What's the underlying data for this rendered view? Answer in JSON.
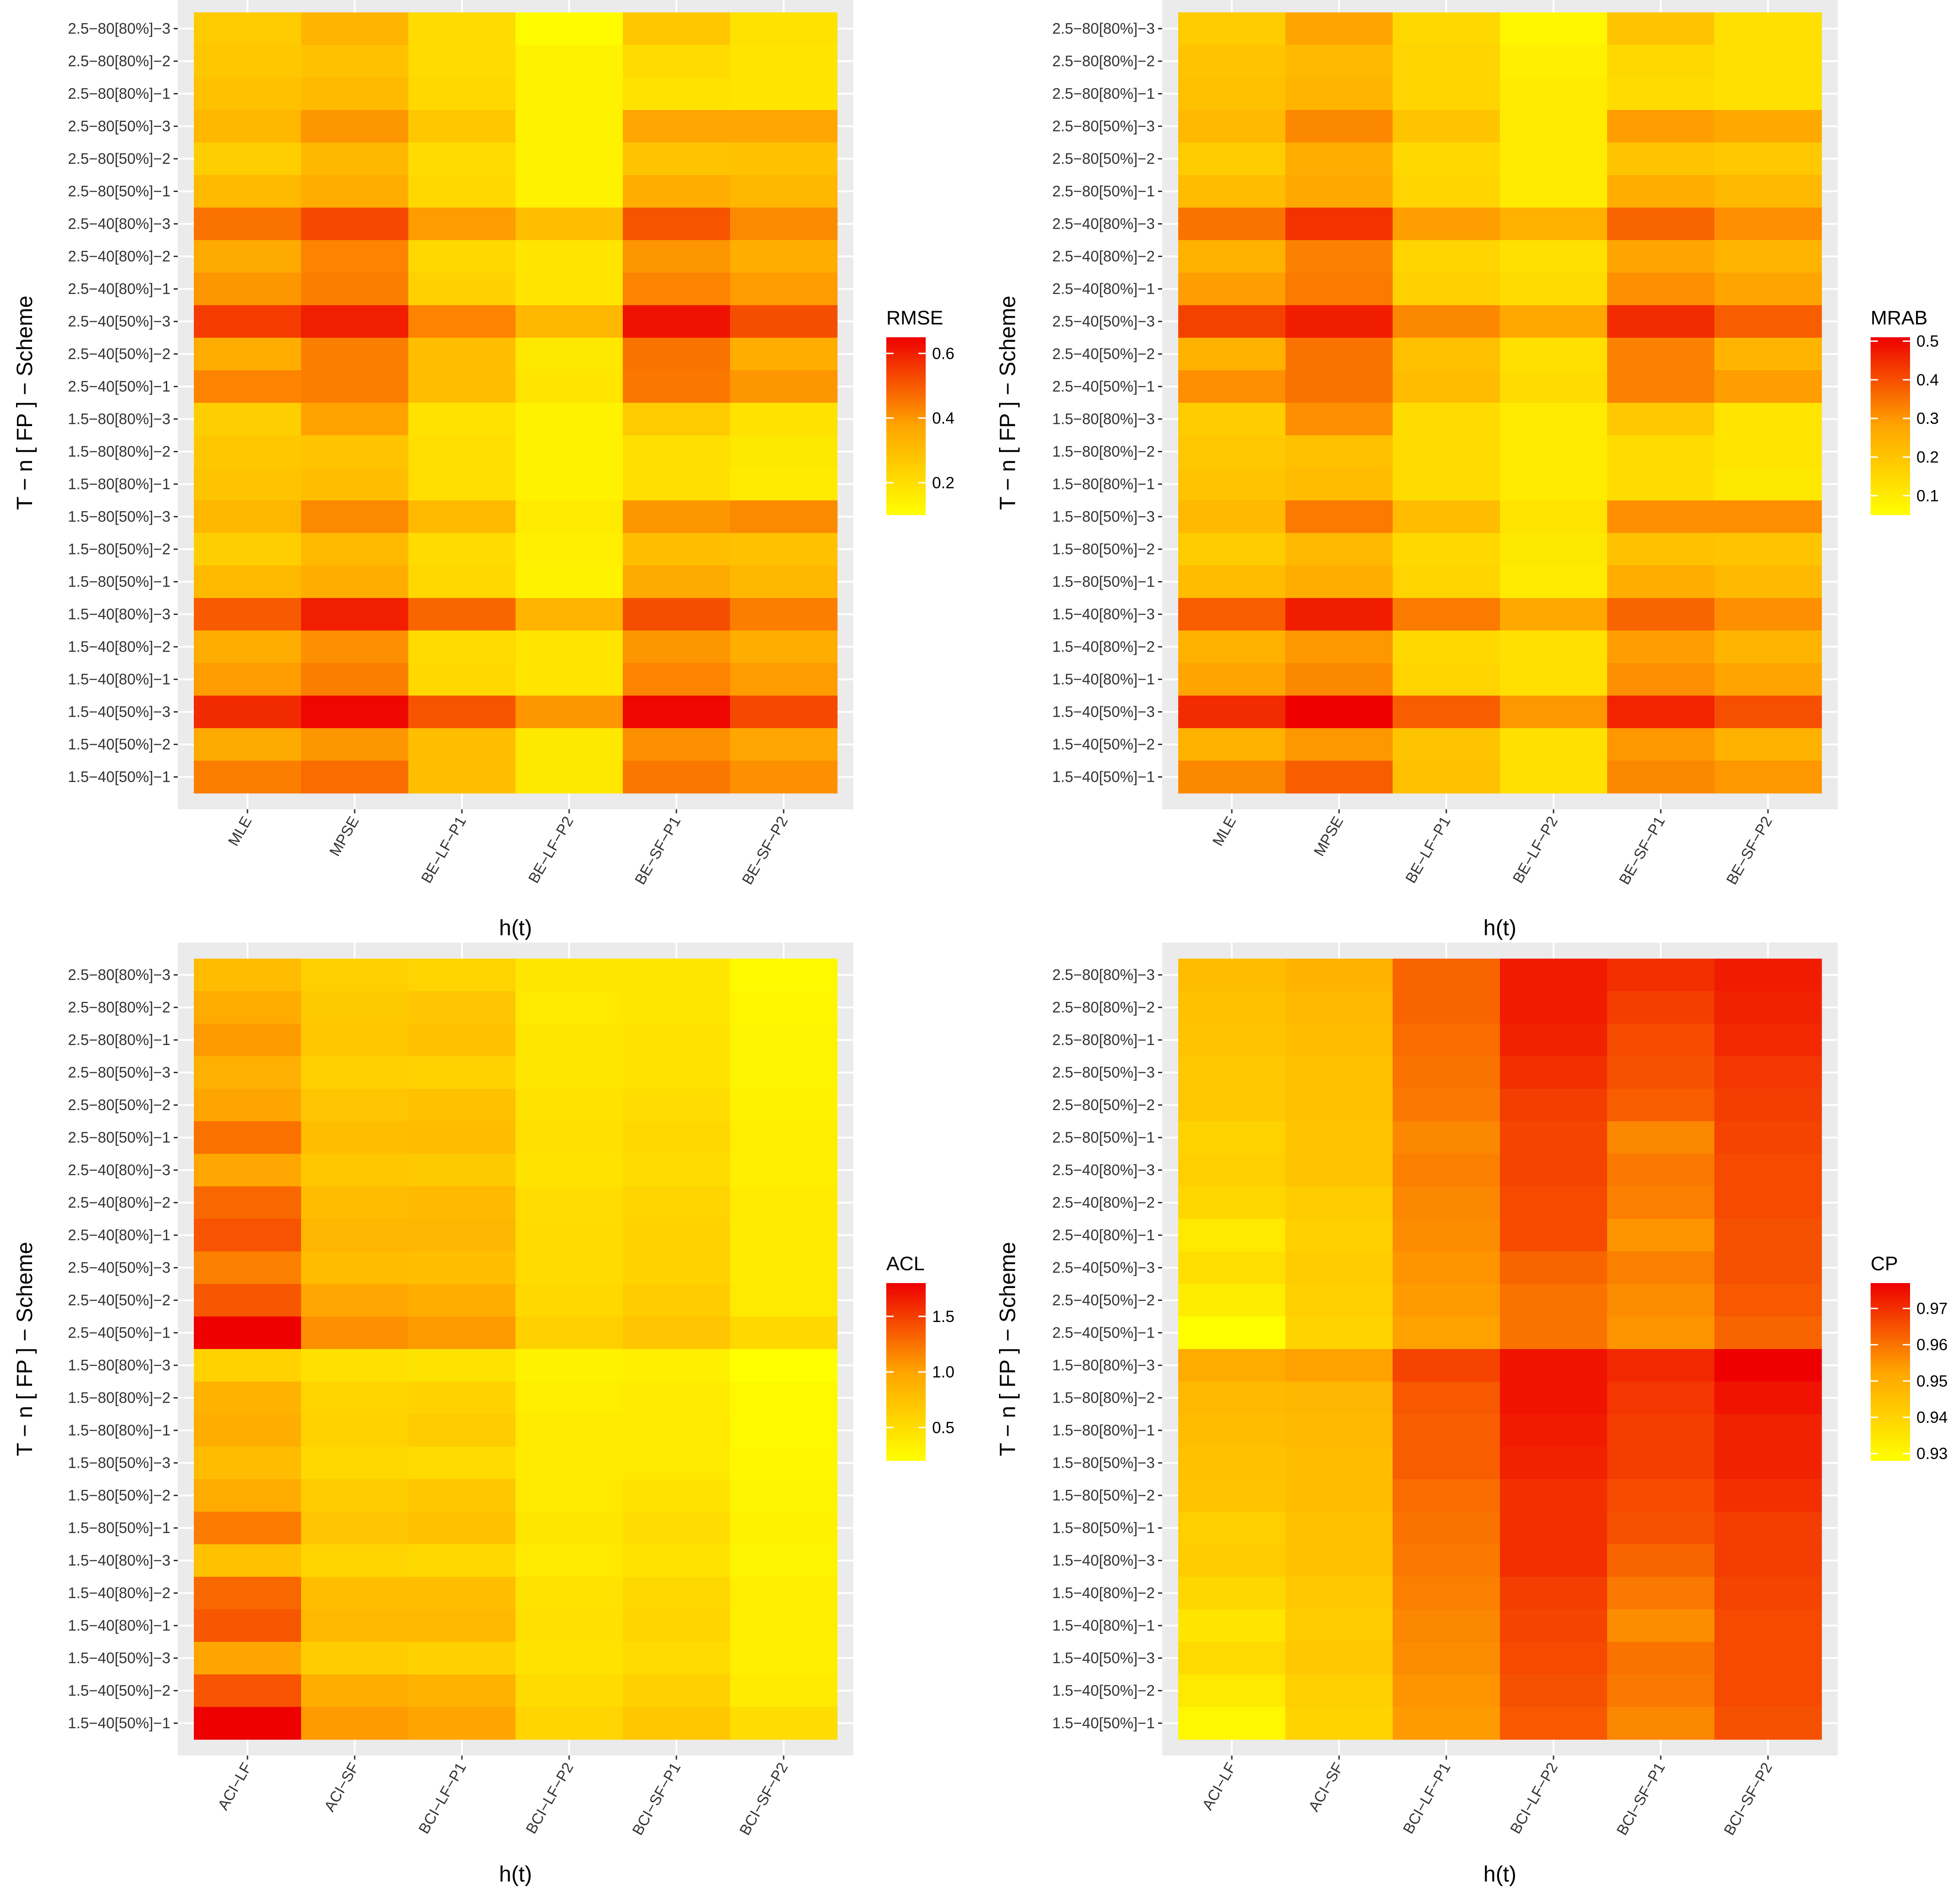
{
  "colors": {
    "low": "#FFFF00",
    "mid": "#FFA500",
    "high": "#EE0000",
    "panel_bg": "#EBEBEB"
  },
  "shared": {
    "rows": [
      "2.5−80[80%]−3",
      "2.5−80[80%]−2",
      "2.5−80[80%]−1",
      "2.5−80[50%]−3",
      "2.5−80[50%]−2",
      "2.5−80[50%]−1",
      "2.5−40[80%]−3",
      "2.5−40[80%]−2",
      "2.5−40[80%]−1",
      "2.5−40[50%]−3",
      "2.5−40[50%]−2",
      "2.5−40[50%]−1",
      "1.5−80[80%]−3",
      "1.5−80[80%]−2",
      "1.5−80[80%]−1",
      "1.5−80[50%]−3",
      "1.5−80[50%]−2",
      "1.5−80[50%]−1",
      "1.5−40[80%]−3",
      "1.5−40[80%]−2",
      "1.5−40[80%]−1",
      "1.5−40[50%]−3",
      "1.5−40[50%]−2",
      "1.5−40[50%]−1"
    ],
    "xlabel": "h(t)",
    "ylabel": "T − n [ FP ] − Scheme"
  },
  "chart_data": [
    {
      "type": "heatmap",
      "legend_title": "RMSE",
      "legend_ticks": [
        0.2,
        0.4,
        0.6
      ],
      "value_range": [
        0.1,
        0.65
      ],
      "columns": [
        "MLE",
        "MPSE",
        "BE−LF−P1",
        "BE−LF−P2",
        "BE−SF−P1",
        "BE−SF−P2"
      ],
      "values": [
        [
          0.26,
          0.33,
          0.21,
          0.11,
          0.27,
          0.19
        ],
        [
          0.27,
          0.29,
          0.21,
          0.14,
          0.21,
          0.18
        ],
        [
          0.29,
          0.31,
          0.22,
          0.14,
          0.19,
          0.18
        ],
        [
          0.32,
          0.4,
          0.27,
          0.14,
          0.37,
          0.37
        ],
        [
          0.25,
          0.32,
          0.21,
          0.14,
          0.28,
          0.29
        ],
        [
          0.31,
          0.35,
          0.22,
          0.14,
          0.35,
          0.32
        ],
        [
          0.46,
          0.53,
          0.39,
          0.3,
          0.51,
          0.42
        ],
        [
          0.36,
          0.43,
          0.22,
          0.18,
          0.4,
          0.35
        ],
        [
          0.4,
          0.44,
          0.24,
          0.18,
          0.43,
          0.39
        ],
        [
          0.55,
          0.6,
          0.43,
          0.32,
          0.62,
          0.52
        ],
        [
          0.35,
          0.44,
          0.3,
          0.17,
          0.46,
          0.35
        ],
        [
          0.43,
          0.44,
          0.3,
          0.18,
          0.45,
          0.4
        ],
        [
          0.25,
          0.38,
          0.19,
          0.14,
          0.26,
          0.19
        ],
        [
          0.27,
          0.28,
          0.2,
          0.14,
          0.2,
          0.17
        ],
        [
          0.28,
          0.3,
          0.2,
          0.14,
          0.2,
          0.16
        ],
        [
          0.32,
          0.42,
          0.31,
          0.16,
          0.4,
          0.42
        ],
        [
          0.25,
          0.31,
          0.21,
          0.15,
          0.3,
          0.29
        ],
        [
          0.31,
          0.35,
          0.22,
          0.14,
          0.36,
          0.32
        ],
        [
          0.5,
          0.6,
          0.48,
          0.33,
          0.52,
          0.44
        ],
        [
          0.35,
          0.41,
          0.21,
          0.18,
          0.4,
          0.35
        ],
        [
          0.39,
          0.44,
          0.22,
          0.18,
          0.43,
          0.39
        ],
        [
          0.58,
          0.64,
          0.51,
          0.4,
          0.64,
          0.53
        ],
        [
          0.36,
          0.4,
          0.3,
          0.17,
          0.41,
          0.37
        ],
        [
          0.44,
          0.47,
          0.3,
          0.17,
          0.45,
          0.41
        ]
      ]
    },
    {
      "type": "heatmap",
      "legend_title": "MRAB",
      "legend_ticks": [
        0.1,
        0.2,
        0.3,
        0.4,
        0.5
      ],
      "value_range": [
        0.05,
        0.51
      ],
      "columns": [
        "MLE",
        "MPSE",
        "BE−LF−P1",
        "BE−LF−P2",
        "BE−SF−P1",
        "BE−SF−P2"
      ],
      "values": [
        [
          0.18,
          0.28,
          0.15,
          0.07,
          0.2,
          0.13
        ],
        [
          0.2,
          0.23,
          0.16,
          0.09,
          0.15,
          0.13
        ],
        [
          0.21,
          0.24,
          0.16,
          0.1,
          0.14,
          0.13
        ],
        [
          0.23,
          0.32,
          0.2,
          0.1,
          0.29,
          0.27
        ],
        [
          0.18,
          0.26,
          0.15,
          0.1,
          0.2,
          0.19
        ],
        [
          0.22,
          0.27,
          0.16,
          0.1,
          0.26,
          0.23
        ],
        [
          0.35,
          0.44,
          0.29,
          0.25,
          0.37,
          0.31
        ],
        [
          0.25,
          0.33,
          0.16,
          0.13,
          0.28,
          0.24
        ],
        [
          0.29,
          0.34,
          0.17,
          0.14,
          0.31,
          0.28
        ],
        [
          0.42,
          0.47,
          0.32,
          0.27,
          0.45,
          0.38
        ],
        [
          0.25,
          0.35,
          0.21,
          0.13,
          0.33,
          0.24
        ],
        [
          0.31,
          0.35,
          0.22,
          0.14,
          0.33,
          0.29
        ],
        [
          0.18,
          0.31,
          0.14,
          0.1,
          0.19,
          0.12
        ],
        [
          0.19,
          0.21,
          0.14,
          0.1,
          0.14,
          0.12
        ],
        [
          0.2,
          0.22,
          0.14,
          0.1,
          0.14,
          0.11
        ],
        [
          0.23,
          0.34,
          0.22,
          0.12,
          0.31,
          0.31
        ],
        [
          0.18,
          0.23,
          0.15,
          0.11,
          0.21,
          0.2
        ],
        [
          0.22,
          0.26,
          0.16,
          0.1,
          0.26,
          0.23
        ],
        [
          0.38,
          0.47,
          0.34,
          0.27,
          0.37,
          0.31
        ],
        [
          0.25,
          0.3,
          0.15,
          0.13,
          0.29,
          0.24
        ],
        [
          0.28,
          0.32,
          0.16,
          0.13,
          0.31,
          0.28
        ],
        [
          0.45,
          0.51,
          0.38,
          0.3,
          0.46,
          0.4
        ],
        [
          0.25,
          0.3,
          0.2,
          0.13,
          0.3,
          0.25
        ],
        [
          0.32,
          0.38,
          0.21,
          0.13,
          0.32,
          0.3
        ]
      ]
    },
    {
      "type": "heatmap",
      "legend_title": "ACL",
      "legend_ticks": [
        0.5,
        1.0,
        1.5
      ],
      "value_range": [
        0.2,
        1.8
      ],
      "columns": [
        "ACI−LF",
        "ACI−SF",
        "BCI−LF−P1",
        "BCI−LF−P2",
        "BCI−SF−P1",
        "BCI−SF−P2"
      ],
      "values": [
        [
          0.8,
          0.62,
          0.58,
          0.42,
          0.42,
          0.25
        ],
        [
          0.95,
          0.68,
          0.72,
          0.4,
          0.42,
          0.28
        ],
        [
          1.05,
          0.7,
          0.75,
          0.42,
          0.45,
          0.3
        ],
        [
          0.9,
          0.62,
          0.6,
          0.42,
          0.45,
          0.3
        ],
        [
          1.0,
          0.72,
          0.75,
          0.45,
          0.5,
          0.32
        ],
        [
          1.25,
          0.78,
          0.8,
          0.48,
          0.55,
          0.35
        ],
        [
          0.98,
          0.7,
          0.68,
          0.45,
          0.52,
          0.35
        ],
        [
          1.3,
          0.8,
          0.82,
          0.5,
          0.58,
          0.38
        ],
        [
          1.4,
          0.85,
          0.85,
          0.52,
          0.6,
          0.38
        ],
        [
          1.18,
          0.8,
          0.78,
          0.52,
          0.6,
          0.38
        ],
        [
          1.38,
          0.98,
          0.92,
          0.55,
          0.65,
          0.4
        ],
        [
          1.8,
          1.1,
          1.05,
          0.62,
          0.72,
          0.55
        ],
        [
          0.6,
          0.48,
          0.45,
          0.32,
          0.33,
          0.2
        ],
        [
          0.88,
          0.58,
          0.6,
          0.35,
          0.38,
          0.25
        ],
        [
          0.92,
          0.6,
          0.65,
          0.38,
          0.4,
          0.25
        ],
        [
          0.8,
          0.55,
          0.52,
          0.38,
          0.4,
          0.27
        ],
        [
          0.95,
          0.65,
          0.7,
          0.4,
          0.45,
          0.3
        ],
        [
          1.2,
          0.72,
          0.75,
          0.42,
          0.5,
          0.32
        ],
        [
          0.75,
          0.58,
          0.55,
          0.4,
          0.45,
          0.3
        ],
        [
          1.3,
          0.78,
          0.78,
          0.45,
          0.55,
          0.35
        ],
        [
          1.38,
          0.82,
          0.82,
          0.48,
          0.58,
          0.35
        ],
        [
          1.0,
          0.65,
          0.62,
          0.45,
          0.52,
          0.35
        ],
        [
          1.4,
          0.92,
          0.88,
          0.52,
          0.62,
          0.38
        ],
        [
          1.8,
          1.05,
          1.0,
          0.58,
          0.7,
          0.5
        ]
      ]
    },
    {
      "type": "heatmap",
      "legend_title": "CP",
      "legend_ticks": [
        0.93,
        0.94,
        0.95,
        0.96,
        0.97
      ],
      "value_range": [
        0.928,
        0.977
      ],
      "columns": [
        "ACI−LF",
        "ACI−SF",
        "BCI−LF−P1",
        "BCI−LF−P2",
        "BCI−SF−P1",
        "BCI−SF−P2"
      ],
      "values": [
        [
          0.946,
          0.949,
          0.962,
          0.973,
          0.97,
          0.973
        ],
        [
          0.945,
          0.947,
          0.962,
          0.973,
          0.968,
          0.972
        ],
        [
          0.944,
          0.946,
          0.961,
          0.972,
          0.966,
          0.971
        ],
        [
          0.943,
          0.945,
          0.96,
          0.97,
          0.965,
          0.969
        ],
        [
          0.943,
          0.945,
          0.959,
          0.968,
          0.963,
          0.968
        ],
        [
          0.94,
          0.944,
          0.957,
          0.967,
          0.957,
          0.967
        ],
        [
          0.941,
          0.944,
          0.958,
          0.967,
          0.959,
          0.966
        ],
        [
          0.939,
          0.942,
          0.957,
          0.966,
          0.958,
          0.966
        ],
        [
          0.934,
          0.941,
          0.956,
          0.966,
          0.955,
          0.965
        ],
        [
          0.937,
          0.942,
          0.955,
          0.962,
          0.958,
          0.965
        ],
        [
          0.933,
          0.941,
          0.954,
          0.96,
          0.956,
          0.964
        ],
        [
          0.928,
          0.94,
          0.953,
          0.96,
          0.955,
          0.962
        ],
        [
          0.951,
          0.953,
          0.967,
          0.974,
          0.971,
          0.977
        ],
        [
          0.947,
          0.948,
          0.964,
          0.974,
          0.969,
          0.974
        ],
        [
          0.946,
          0.947,
          0.963,
          0.973,
          0.968,
          0.972
        ],
        [
          0.945,
          0.946,
          0.963,
          0.972,
          0.968,
          0.972
        ],
        [
          0.944,
          0.946,
          0.961,
          0.97,
          0.966,
          0.97
        ],
        [
          0.941,
          0.945,
          0.96,
          0.97,
          0.965,
          0.968
        ],
        [
          0.942,
          0.945,
          0.959,
          0.97,
          0.962,
          0.968
        ],
        [
          0.939,
          0.943,
          0.958,
          0.968,
          0.959,
          0.967
        ],
        [
          0.935,
          0.942,
          0.957,
          0.967,
          0.956,
          0.966
        ],
        [
          0.938,
          0.943,
          0.956,
          0.966,
          0.96,
          0.966
        ],
        [
          0.934,
          0.941,
          0.955,
          0.965,
          0.959,
          0.966
        ],
        [
          0.93,
          0.94,
          0.954,
          0.964,
          0.957,
          0.965
        ]
      ]
    }
  ]
}
